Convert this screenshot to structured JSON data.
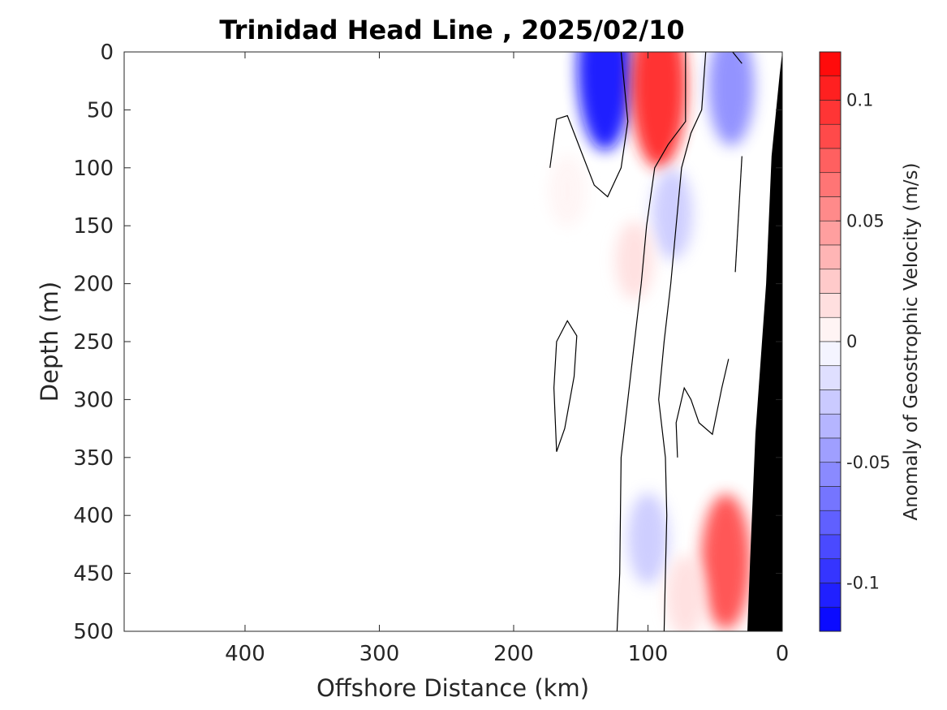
{
  "chart_data": {
    "type": "heatmap",
    "title": "Trinidad Head Line , 2025/02/10",
    "xlabel": "Offshore Distance (km)",
    "ylabel": "Depth (m)",
    "xlim": [
      490,
      0
    ],
    "ylim": [
      0,
      500
    ],
    "x_reversed": true,
    "y_reversed": true,
    "xticks": [
      400,
      300,
      200,
      100,
      0
    ],
    "xtick_labels": [
      "400",
      "300",
      "200",
      "100",
      "0"
    ],
    "yticks": [
      0,
      50,
      100,
      150,
      200,
      250,
      300,
      350,
      400,
      450,
      500
    ],
    "ytick_labels": [
      "0",
      "50",
      "100",
      "150",
      "200",
      "250",
      "300",
      "350",
      "400",
      "450",
      "500"
    ],
    "colorbar": {
      "label": "Anomaly of Geostrophic Velocity (m/s)",
      "range": [
        -0.12,
        0.12
      ],
      "levels": 24,
      "ticks": [
        0.1,
        0.05,
        0,
        -0.05,
        -0.1
      ],
      "tick_labels": [
        "0.1",
        "0.05",
        "0",
        "-0.05",
        "-0.1"
      ],
      "negative_color": "#0000ff",
      "positive_color": "#ff0000",
      "zero_color": "#ffffff"
    },
    "bathymetry_color": "#000000",
    "features": [
      {
        "name": "surface negative core",
        "x": 132,
        "y": 15,
        "value": -0.11
      },
      {
        "name": "surface positive core",
        "x": 92,
        "y": 30,
        "value": 0.11
      },
      {
        "name": "nearshore negative core",
        "x": 38,
        "y": 30,
        "value": -0.06
      },
      {
        "name": "mid-depth negative band",
        "x": 82,
        "y": 140,
        "value": -0.03
      },
      {
        "name": "upper-offshore positive band",
        "x": 110,
        "y": 180,
        "value": 0.015
      },
      {
        "name": "deep negative core",
        "x": 100,
        "y": 420,
        "value": -0.03
      },
      {
        "name": "deep positive core",
        "x": 42,
        "y": 440,
        "value": 0.08
      },
      {
        "name": "deep positive band",
        "x": 72,
        "y": 470,
        "value": 0.02
      },
      {
        "name": "offshore positive patch",
        "x": 160,
        "y": 120,
        "value": 0.008
      }
    ],
    "zero_contours": [
      {
        "points": [
          [
            173,
            100
          ],
          [
            168,
            58
          ],
          [
            160,
            55
          ],
          [
            150,
            85
          ],
          [
            140,
            115
          ],
          [
            130,
            125
          ],
          [
            120,
            100
          ],
          [
            115,
            60
          ],
          [
            120,
            0
          ]
        ]
      },
      {
        "points": [
          [
            72,
            0
          ],
          [
            72,
            60
          ],
          [
            85,
            80
          ],
          [
            95,
            100
          ],
          [
            101,
            150
          ],
          [
            105,
            200
          ],
          [
            110,
            250
          ],
          [
            115,
            300
          ],
          [
            120,
            350
          ],
          [
            121,
            450
          ],
          [
            123,
            500
          ]
        ]
      },
      {
        "points": [
          [
            57,
            0
          ],
          [
            60,
            50
          ],
          [
            68,
            70
          ],
          [
            75,
            100
          ],
          [
            79,
            150
          ],
          [
            83,
            200
          ],
          [
            88,
            250
          ],
          [
            92,
            300
          ],
          [
            87,
            350
          ],
          [
            86,
            400
          ],
          [
            87,
            450
          ],
          [
            88,
            500
          ]
        ]
      },
      {
        "points": [
          [
            37,
            0
          ],
          [
            30,
            10
          ]
        ]
      },
      {
        "points": [
          [
            168,
            345
          ],
          [
            162,
            325
          ],
          [
            155,
            280
          ],
          [
            153,
            245
          ],
          [
            160,
            232
          ],
          [
            168,
            250
          ],
          [
            170,
            290
          ],
          [
            168,
            345
          ]
        ]
      },
      {
        "points": [
          [
            30,
            90
          ],
          [
            35,
            190
          ]
        ]
      },
      {
        "points": [
          [
            40,
            265
          ],
          [
            45,
            290
          ],
          [
            52,
            330
          ],
          [
            62,
            320
          ],
          [
            68,
            300
          ],
          [
            73,
            290
          ],
          [
            79,
            320
          ],
          [
            78,
            350
          ]
        ]
      }
    ]
  }
}
